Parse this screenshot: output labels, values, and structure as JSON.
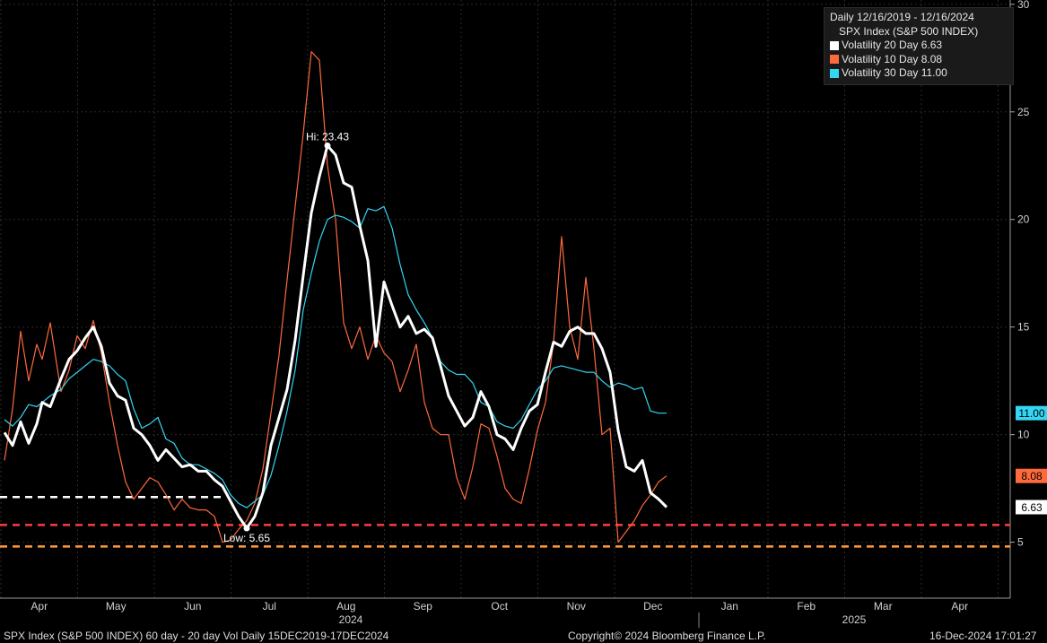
{
  "chart_data": {
    "type": "line",
    "x_axis": {
      "months": [
        "Apr",
        "May",
        "Jun",
        "Jul",
        "Aug",
        "Sep",
        "Oct",
        "Nov",
        "Dec",
        "Jan",
        "Feb",
        "Mar",
        "Apr"
      ],
      "years": [
        "2024",
        "2025"
      ]
    },
    "y_axis": {
      "ticks": [
        5,
        10,
        15,
        20,
        25,
        30
      ],
      "ylim": [
        2.4,
        30.2
      ],
      "side": "right"
    },
    "legend": {
      "title": "Daily 12/16/2019 - 12/16/2024",
      "subtitle": "SPX Index (S&P 500 INDEX)",
      "entries": [
        {
          "label": "Volatility 20 Day 6.63",
          "color": "#ffffff"
        },
        {
          "label": "Volatility 10 Day 8.08",
          "color": "#ff6a3d"
        },
        {
          "label": "Volatility 30 Day 11.00",
          "color": "#33d6f5"
        }
      ],
      "placement": "top-right"
    },
    "series": [
      {
        "name": "Volatility 20 Day",
        "color": "#ffffff",
        "last": "6.63",
        "x": [
          0,
          3,
          6,
          9,
          12,
          14,
          17,
          21,
          24,
          27,
          30,
          33,
          36,
          39,
          42,
          45,
          48,
          51,
          54,
          57,
          60,
          63,
          66,
          69,
          72,
          75,
          78,
          81,
          84,
          87,
          90,
          93,
          96,
          99,
          102,
          105,
          108,
          111,
          114,
          117,
          120,
          123,
          126,
          129,
          132,
          135,
          138,
          141,
          144,
          147,
          150,
          153,
          156,
          159,
          162,
          165,
          168,
          171,
          174,
          177,
          180,
          183,
          186,
          189,
          192,
          195,
          198,
          201,
          204,
          207,
          210,
          213,
          216,
          219,
          222,
          225,
          228,
          231,
          234,
          237,
          240,
          243,
          246
        ],
        "y": [
          10.1,
          9.5,
          10.6,
          9.6,
          10.5,
          11.5,
          11.3,
          12.6,
          13.5,
          13.9,
          14.5,
          15.0,
          14.1,
          12.4,
          11.8,
          11.6,
          10.3,
          10.0,
          9.5,
          8.8,
          9.3,
          8.9,
          8.5,
          8.6,
          8.3,
          8.3,
          7.9,
          7.6,
          6.9,
          6.2,
          5.65,
          6.2,
          7.3,
          9.5,
          10.8,
          12.1,
          14.4,
          17.4,
          20.3,
          22.0,
          23.43,
          23.0,
          21.7,
          21.5,
          19.7,
          18.1,
          14.1,
          17.1,
          16.0,
          15.0,
          15.5,
          14.7,
          14.9,
          14.5,
          13.2,
          11.8,
          11.1,
          10.4,
          10.8,
          12.0,
          11.3,
          10.0,
          9.8,
          9.3,
          10.3,
          11.1,
          11.4,
          12.9,
          14.3,
          14.1,
          14.8,
          15.0,
          14.7,
          14.7,
          14.0,
          12.9,
          10.2,
          8.5,
          8.3,
          8.8,
          7.3,
          7.0,
          6.63
        ]
      },
      {
        "name": "Volatility 10 Day",
        "color": "#ff6a3d",
        "last": "8.08",
        "x": [
          0,
          3,
          6,
          9,
          12,
          14,
          17,
          21,
          24,
          27,
          30,
          33,
          36,
          39,
          42,
          45,
          48,
          51,
          54,
          57,
          60,
          63,
          66,
          69,
          72,
          75,
          78,
          81,
          84,
          87,
          90,
          93,
          96,
          99,
          102,
          105,
          108,
          111,
          114,
          117,
          120,
          123,
          126,
          129,
          132,
          135,
          138,
          141,
          144,
          147,
          150,
          153,
          156,
          159,
          162,
          165,
          168,
          171,
          174,
          177,
          180,
          183,
          186,
          189,
          192,
          195,
          198,
          201,
          204,
          207,
          210,
          213,
          216,
          219,
          222,
          225,
          228,
          231,
          234,
          237,
          240,
          243,
          246
        ],
        "y": [
          8.8,
          11.2,
          14.8,
          12.5,
          14.2,
          13.5,
          15.2,
          12.0,
          13.0,
          14.6,
          14.0,
          15.3,
          13.8,
          11.5,
          9.5,
          7.8,
          7.0,
          7.5,
          8.0,
          7.8,
          7.2,
          6.5,
          7.0,
          6.6,
          6.5,
          6.5,
          6.2,
          5.0,
          5.1,
          5.6,
          6.0,
          6.8,
          8.4,
          11.0,
          13.7,
          17.2,
          20.6,
          24.0,
          27.8,
          27.4,
          22.5,
          20.0,
          15.2,
          14.0,
          15.0,
          13.5,
          14.6,
          13.8,
          13.4,
          12.0,
          13.0,
          14.2,
          11.5,
          10.3,
          10.0,
          10.0,
          8.0,
          7.0,
          8.5,
          10.5,
          10.3,
          9.0,
          7.5,
          7.0,
          6.8,
          8.4,
          10.2,
          11.5,
          14.3,
          19.2,
          15.0,
          13.5,
          17.3,
          14.0,
          10.0,
          10.3,
          5.0,
          5.5,
          6.0,
          6.7,
          7.2,
          7.8,
          8.08
        ]
      },
      {
        "name": "Volatility 30 Day",
        "color": "#33d6f5",
        "last": "11.00",
        "x": [
          0,
          3,
          6,
          9,
          12,
          14,
          17,
          21,
          24,
          27,
          30,
          33,
          36,
          39,
          42,
          45,
          48,
          51,
          54,
          57,
          60,
          63,
          66,
          69,
          72,
          75,
          78,
          81,
          84,
          87,
          90,
          93,
          96,
          99,
          102,
          105,
          108,
          111,
          114,
          117,
          120,
          123,
          126,
          129,
          132,
          135,
          138,
          141,
          144,
          147,
          150,
          153,
          156,
          159,
          162,
          165,
          168,
          171,
          174,
          177,
          180,
          183,
          186,
          189,
          192,
          195,
          198,
          201,
          204,
          207,
          210,
          213,
          216,
          219,
          222,
          225,
          228,
          231,
          234,
          237,
          240,
          243,
          246
        ],
        "y": [
          10.7,
          10.4,
          10.8,
          11.4,
          11.3,
          11.5,
          11.8,
          12.1,
          12.6,
          12.9,
          13.2,
          13.5,
          13.4,
          13.2,
          12.8,
          12.5,
          11.2,
          10.3,
          10.5,
          10.8,
          9.8,
          9.6,
          8.9,
          8.6,
          8.6,
          8.4,
          8.2,
          7.9,
          7.2,
          6.8,
          6.6,
          6.9,
          7.2,
          8.1,
          9.5,
          11.1,
          13.0,
          15.8,
          17.5,
          19.0,
          20.0,
          20.2,
          20.1,
          19.9,
          19.6,
          20.5,
          20.4,
          20.6,
          19.6,
          17.9,
          16.5,
          15.8,
          15.2,
          14.5,
          13.4,
          13.0,
          12.8,
          12.8,
          12.4,
          11.5,
          11.3,
          10.6,
          10.4,
          10.3,
          10.7,
          11.4,
          12.1,
          12.5,
          13.1,
          13.2,
          13.1,
          13.0,
          12.9,
          12.9,
          12.5,
          12.2,
          12.4,
          12.3,
          12.1,
          12.2,
          11.1,
          11.0,
          11.0
        ]
      }
    ],
    "annotations": [
      {
        "label": "Hi: 23.43",
        "x": 120,
        "y": 23.43
      },
      {
        "label": "Low: 5.65",
        "x": 90,
        "y": 5.65
      }
    ],
    "reference_lines": [
      {
        "value": 7.1,
        "color": "#ffffff"
      },
      {
        "value": 5.8,
        "color": "#ff3b3b"
      },
      {
        "value": 4.8,
        "color": "#ff9a3c"
      }
    ],
    "grid": true
  },
  "footer": {
    "left": "SPX Index (S&P 500 INDEX) 60 day - 20 day Vol  Daily 15DEC2019-17DEC2024",
    "center": "Copyright© 2024 Bloomberg Finance L.P.",
    "right": "16-Dec-2024 17:01:27"
  }
}
